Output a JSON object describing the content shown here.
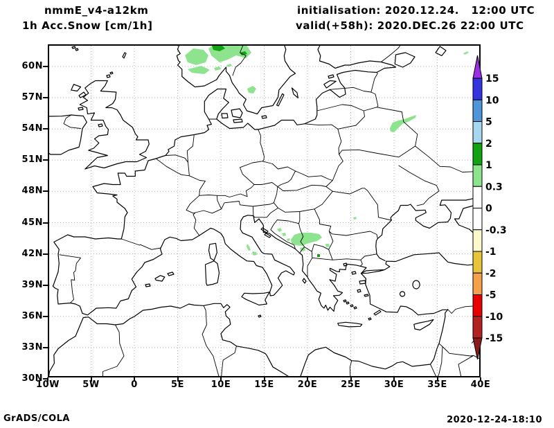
{
  "header": {
    "model": "nmmE_v4-a12km",
    "product": "1h Acc.Snow [cm/1h]",
    "init": "initialisation: 2020.12.24.   12:00 UTC",
    "valid": "valid(+58h): 2020.DEC.26 22:00 UTC"
  },
  "footer": {
    "brand": "GrADS/COLA",
    "timestamp": "2020-12-24-18:10"
  },
  "axes": {
    "lat": [
      {
        "label": "60N",
        "value": 60
      },
      {
        "label": "57N",
        "value": 57
      },
      {
        "label": "54N",
        "value": 54
      },
      {
        "label": "51N",
        "value": 51
      },
      {
        "label": "48N",
        "value": 48
      },
      {
        "label": "45N",
        "value": 45
      },
      {
        "label": "42N",
        "value": 42
      },
      {
        "label": "39N",
        "value": 39
      },
      {
        "label": "36N",
        "value": 36
      },
      {
        "label": "33N",
        "value": 33
      },
      {
        "label": "30N",
        "value": 30
      }
    ],
    "lon": [
      {
        "label": "10W",
        "value": -10
      },
      {
        "label": "5W",
        "value": -5
      },
      {
        "label": "0",
        "value": 0
      },
      {
        "label": "5E",
        "value": 5
      },
      {
        "label": "10E",
        "value": 10
      },
      {
        "label": "15E",
        "value": 15
      },
      {
        "label": "20E",
        "value": 20
      },
      {
        "label": "25E",
        "value": 25
      },
      {
        "label": "30E",
        "value": 30
      },
      {
        "label": "35E",
        "value": 35
      },
      {
        "label": "40E",
        "value": 40
      }
    ]
  },
  "colorbar": {
    "labels": [
      "15",
      "10",
      "5",
      "2",
      "1",
      "0.3",
      "0",
      "-0.3",
      "-1",
      "-2",
      "-5",
      "-10",
      "-15"
    ],
    "segments": [
      {
        "range": "> 15",
        "color": "#9b2fe3",
        "shape": "arrow-up"
      },
      {
        "range": "10 to 15",
        "color": "#3535e0"
      },
      {
        "range": "5 to 10",
        "color": "#4e96d9"
      },
      {
        "range": "2 to 5",
        "color": "#a8d8f0"
      },
      {
        "range": "1 to 2",
        "color": "#12a312"
      },
      {
        "range": "0.3 to 1",
        "color": "#8ee38e"
      },
      {
        "range": "0 to 0.3",
        "color": "#ffffff"
      },
      {
        "range": "-0.3 to 0",
        "color": "#ffffff"
      },
      {
        "range": "-1 to -0.3",
        "color": "#fbf8cc"
      },
      {
        "range": "-2 to -1",
        "color": "#e6c53d"
      },
      {
        "range": "-5 to -2",
        "color": "#f5a04a"
      },
      {
        "range": "-10 to -5",
        "color": "#e80000"
      },
      {
        "range": "-15 to -10",
        "color": "#b22222"
      },
      {
        "range": "< -15",
        "color": "#8b1a1a",
        "shape": "arrow-down"
      }
    ]
  },
  "map": {
    "extent": {
      "lon_min": -10,
      "lon_max": 40,
      "lat_min": 30,
      "lat_max": 62
    },
    "grid_color": "#b3b3b3",
    "snow_color_light": "#8ee38e",
    "snow_color_dark": "#12a312",
    "snow_areas": [
      {
        "region": "Southern Norway mountains",
        "value_cm": "0.3-1 (spots 1-2)"
      },
      {
        "region": "Southern Sweden small spot",
        "value_cm": "0.3-1"
      },
      {
        "region": "Belarus / western Russia",
        "value_cm": "0.3-1"
      },
      {
        "region": "Central Italy Apennines spots",
        "value_cm": "0.3-1"
      },
      {
        "region": "Serbia / Bosnia / Montenegro",
        "value_cm": "0.3-1"
      },
      {
        "region": "North Macedonia tiny spot",
        "value_cm": "1-2"
      }
    ]
  }
}
